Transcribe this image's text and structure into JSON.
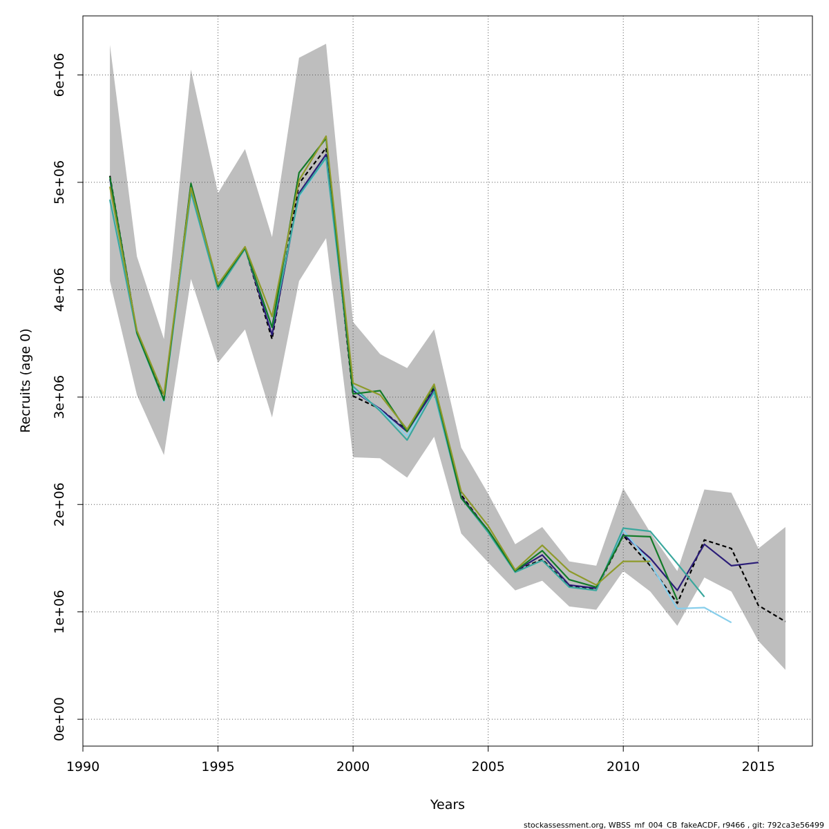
{
  "chart_data": {
    "type": "line",
    "title": "",
    "xlabel": "Years",
    "ylabel": "Recruits (age 0)",
    "xlim": [
      1990,
      2017
    ],
    "ylim": [
      -250000,
      6550000
    ],
    "xticks": [
      1990,
      1995,
      2000,
      2005,
      2010,
      2015
    ],
    "xtick_labels": [
      "1990",
      "1995",
      "2000",
      "2005",
      "2010",
      "2015"
    ],
    "yticks": [
      0,
      1000000,
      2000000,
      3000000,
      4000000,
      5000000,
      6000000
    ],
    "ytick_labels": [
      "0e+00",
      "1e+06",
      "2e+06",
      "3e+06",
      "4e+06",
      "5e+06",
      "6e+06"
    ],
    "grid": true,
    "confidence_band": {
      "color": "#bebebe",
      "x": [
        1991,
        1992,
        1993,
        1994,
        1995,
        1996,
        1997,
        1998,
        1999,
        2000,
        2001,
        2002,
        2003,
        2004,
        2005,
        2006,
        2007,
        2008,
        2009,
        2010,
        2011,
        2012,
        2013,
        2014,
        2015,
        2016
      ],
      "lower": [
        4080000,
        3020000,
        2460000,
        4100000,
        3320000,
        3630000,
        2810000,
        4080000,
        4480000,
        2440000,
        2430000,
        2250000,
        2630000,
        1730000,
        1460000,
        1200000,
        1290000,
        1050000,
        1020000,
        1380000,
        1190000,
        870000,
        1320000,
        1190000,
        730000,
        460000
      ],
      "upper": [
        6280000,
        4310000,
        3540000,
        6050000,
        4900000,
        5310000,
        4490000,
        6160000,
        6290000,
        3700000,
        3400000,
        3270000,
        3630000,
        2530000,
        2100000,
        1630000,
        1790000,
        1470000,
        1430000,
        2150000,
        1740000,
        1380000,
        2140000,
        2110000,
        1590000,
        1790000
      ]
    },
    "series": [
      {
        "color": "#000000",
        "dashed": true,
        "x": [
          1991,
          1992,
          1993,
          1994,
          1995,
          1996,
          1997,
          1998,
          1999,
          2000,
          2001,
          2002,
          2003,
          2004,
          2005,
          2006,
          2007,
          2008,
          2009,
          2010,
          2011,
          2012,
          2013,
          2014,
          2015,
          2016
        ],
        "values": [
          5060000,
          3600000,
          2980000,
          4980000,
          4030000,
          4390000,
          3540000,
          4990000,
          5320000,
          3010000,
          2890000,
          2690000,
          3090000,
          2090000,
          1750000,
          1380000,
          1490000,
          1240000,
          1210000,
          1710000,
          1430000,
          1080000,
          1670000,
          1590000,
          1060000,
          910000
        ]
      },
      {
        "color": "#2b1d78",
        "dashed": false,
        "x": [
          1991,
          1992,
          1993,
          1994,
          1995,
          1996,
          1997,
          1998,
          1999,
          2000,
          2001,
          2002,
          2003,
          2004,
          2005,
          2006,
          2007,
          2008,
          2009,
          2010,
          2011,
          2012,
          2013,
          2014,
          2015
        ],
        "values": [
          5030000,
          3600000,
          2970000,
          4970000,
          4020000,
          4390000,
          3580000,
          4900000,
          5260000,
          3060000,
          2890000,
          2680000,
          3070000,
          2070000,
          1760000,
          1380000,
          1530000,
          1250000,
          1220000,
          1720000,
          1500000,
          1200000,
          1630000,
          1430000,
          1460000
        ]
      },
      {
        "color": "#87ceeb",
        "dashed": false,
        "x": [
          1991,
          1992,
          1993,
          1994,
          1995,
          1996,
          1997,
          1998,
          1999,
          2000,
          2001,
          2002,
          2003,
          2004,
          2005,
          2006,
          2007,
          2008,
          2009,
          2010,
          2011,
          2012,
          2013,
          2014
        ],
        "values": [
          4830000,
          3590000,
          2960000,
          4900000,
          4000000,
          4380000,
          3650000,
          4870000,
          5220000,
          3080000,
          2880000,
          2640000,
          3040000,
          2060000,
          1740000,
          1370000,
          1480000,
          1230000,
          1200000,
          1760000,
          1450000,
          1030000,
          1040000,
          900000
        ]
      },
      {
        "color": "#3aa79d",
        "dashed": false,
        "x": [
          1991,
          1992,
          1993,
          1994,
          1995,
          1996,
          1997,
          1998,
          1999,
          2000,
          2001,
          2002,
          2003,
          2004,
          2005,
          2006,
          2007,
          2008,
          2009,
          2010,
          2011,
          2012,
          2013
        ],
        "values": [
          4840000,
          3590000,
          2970000,
          4910000,
          4000000,
          4380000,
          3650000,
          4880000,
          5230000,
          3100000,
          2870000,
          2600000,
          3050000,
          2060000,
          1740000,
          1370000,
          1480000,
          1230000,
          1200000,
          1780000,
          1750000,
          1450000,
          1140000
        ]
      },
      {
        "color": "#127a28",
        "dashed": false,
        "x": [
          1991,
          1992,
          1993,
          1994,
          1995,
          1996,
          1997,
          1998,
          1999,
          2000,
          2001,
          2002,
          2003,
          2004,
          2005,
          2006,
          2007,
          2008,
          2009,
          2010,
          2011,
          2012
        ],
        "values": [
          5050000,
          3600000,
          2970000,
          4990000,
          4030000,
          4390000,
          3650000,
          5090000,
          5410000,
          3030000,
          3060000,
          2680000,
          3110000,
          2060000,
          1760000,
          1380000,
          1570000,
          1300000,
          1230000,
          1710000,
          1700000,
          1110000
        ]
      },
      {
        "color": "#8e9a2a",
        "dashed": false,
        "x": [
          1991,
          1992,
          1993,
          1994,
          1995,
          1996,
          1997,
          1998,
          1999,
          2000,
          2001,
          2002,
          2003,
          2004,
          2005,
          2006,
          2007,
          2008,
          2009,
          2010,
          2011
        ],
        "values": [
          4960000,
          3620000,
          3020000,
          4950000,
          4050000,
          4400000,
          3750000,
          5020000,
          5430000,
          3130000,
          3020000,
          2700000,
          3120000,
          2120000,
          1800000,
          1390000,
          1620000,
          1380000,
          1250000,
          1470000,
          1470000
        ]
      }
    ]
  },
  "footer": {
    "text": "stockassessment.org, WBSS_mf_004_CB_fakeACDF, r9466 , git: 792ca3e56499"
  }
}
